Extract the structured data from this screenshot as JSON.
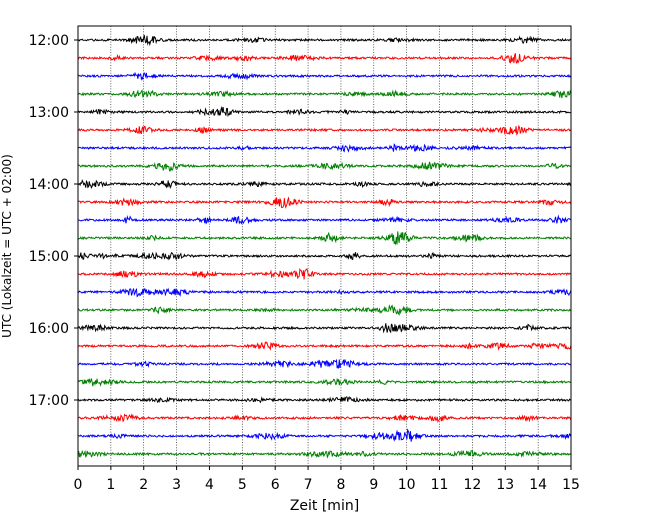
{
  "chart_data": {
    "type": "line",
    "title": "",
    "xlabel": "Zeit  [min]",
    "ylabel": "UTC (Lokalzeit = UTC + 02:00)",
    "xlim": [
      0,
      15
    ],
    "x_ticks": [
      "0",
      "1",
      "2",
      "3",
      "4",
      "5",
      "6",
      "7",
      "8",
      "9",
      "10",
      "11",
      "12",
      "13",
      "14",
      "15"
    ],
    "y_ticks": [
      "12:00",
      "13:00",
      "14:00",
      "15:00",
      "16:00",
      "17:00"
    ],
    "grid": "vertical dotted",
    "colors": [
      "#000000",
      "#ff0000",
      "#0000ff",
      "#008000"
    ],
    "rows": [
      {
        "time": "12:00",
        "color": "#000000"
      },
      {
        "time": "12:15",
        "color": "#ff0000"
      },
      {
        "time": "12:30",
        "color": "#0000ff"
      },
      {
        "time": "12:45",
        "color": "#008000"
      },
      {
        "time": "13:00",
        "color": "#000000"
      },
      {
        "time": "13:15",
        "color": "#ff0000"
      },
      {
        "time": "13:30",
        "color": "#0000ff"
      },
      {
        "time": "13:45",
        "color": "#008000"
      },
      {
        "time": "14:00",
        "color": "#000000"
      },
      {
        "time": "14:15",
        "color": "#ff0000"
      },
      {
        "time": "14:30",
        "color": "#0000ff"
      },
      {
        "time": "14:45",
        "color": "#008000"
      },
      {
        "time": "15:00",
        "color": "#000000"
      },
      {
        "time": "15:15",
        "color": "#ff0000"
      },
      {
        "time": "15:30",
        "color": "#0000ff"
      },
      {
        "time": "15:45",
        "color": "#008000"
      },
      {
        "time": "16:00",
        "color": "#000000"
      },
      {
        "time": "16:15",
        "color": "#ff0000"
      },
      {
        "time": "16:30",
        "color": "#0000ff"
      },
      {
        "time": "16:45",
        "color": "#008000"
      },
      {
        "time": "17:00",
        "color": "#000000"
      },
      {
        "time": "17:15",
        "color": "#ff0000"
      },
      {
        "time": "17:30",
        "color": "#0000ff"
      },
      {
        "time": "17:45",
        "color": "#008000"
      }
    ]
  }
}
